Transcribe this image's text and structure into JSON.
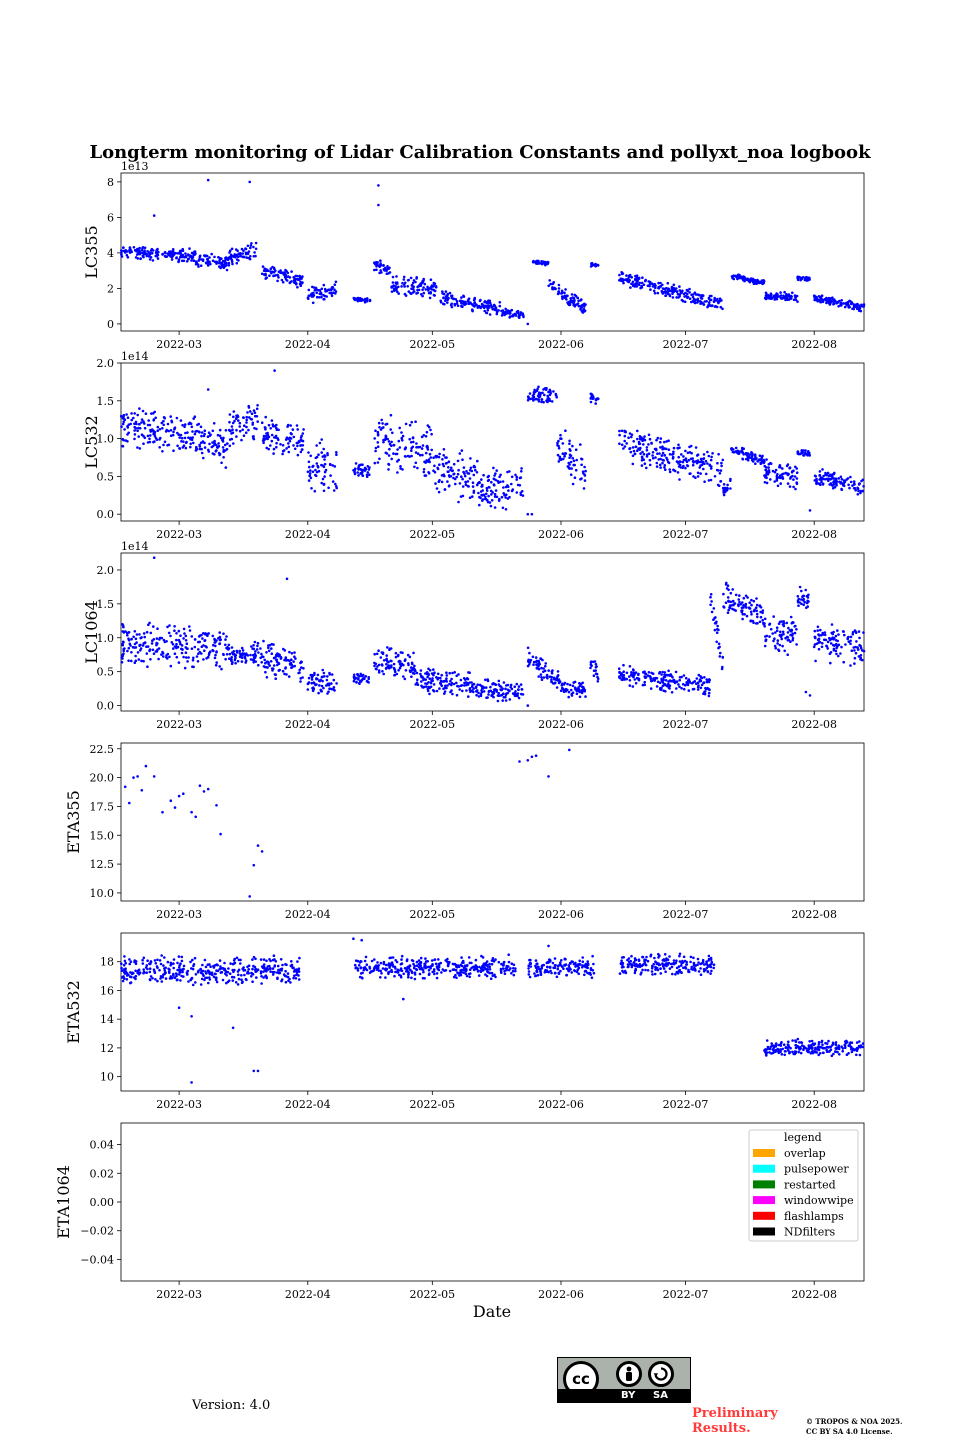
{
  "figure": {
    "title": "Longterm monitoring of Lidar Calibration Constants and pollyxt_noa logbook",
    "xlabel": "Date",
    "x_ticks": [
      "2022-03",
      "2022-04",
      "2022-05",
      "2022-06",
      "2022-07",
      "2022-08"
    ],
    "marker_color": "#0000ff"
  },
  "chart_data": [
    {
      "type": "scatter",
      "name": "lc355",
      "ylabel": "LC355",
      "offset_text": "1e13",
      "ylim": [
        -0.4,
        8.5
      ],
      "yticks": [
        0,
        2,
        4,
        6,
        8
      ],
      "ytick_labels": [
        "0",
        "2",
        "4",
        "6",
        "8"
      ],
      "segments": [
        {
          "start": "2022-02-15",
          "end": "2022-03-05",
          "y0": 4.1,
          "y1": 3.8,
          "spread": 0.5
        },
        {
          "start": "2022-03-05",
          "end": "2022-03-13",
          "y0": 3.6,
          "y1": 3.4,
          "spread": 0.5
        },
        {
          "start": "2022-03-13",
          "end": "2022-03-20",
          "y0": 3.8,
          "y1": 4.2,
          "spread": 0.6
        },
        {
          "start": "2022-03-21",
          "end": "2022-03-31",
          "y0": 3.0,
          "y1": 2.4,
          "spread": 0.5
        },
        {
          "start": "2022-04-01",
          "end": "2022-04-08",
          "y0": 1.6,
          "y1": 2.0,
          "spread": 0.6
        },
        {
          "start": "2022-04-12",
          "end": "2022-04-16",
          "y0": 1.4,
          "y1": 1.3,
          "spread": 0.15
        },
        {
          "start": "2022-04-17",
          "end": "2022-04-21",
          "y0": 3.4,
          "y1": 3.0,
          "spread": 0.5
        },
        {
          "start": "2022-04-21",
          "end": "2022-05-02",
          "y0": 2.2,
          "y1": 2.0,
          "spread": 0.7
        },
        {
          "start": "2022-05-03",
          "end": "2022-05-18",
          "y0": 1.5,
          "y1": 0.8,
          "spread": 0.5
        },
        {
          "start": "2022-05-18",
          "end": "2022-05-23",
          "y0": 0.6,
          "y1": 0.5,
          "spread": 0.3
        },
        {
          "start": "2022-05-25",
          "end": "2022-05-29",
          "y0": 3.5,
          "y1": 3.4,
          "spread": 0.15
        },
        {
          "start": "2022-05-29",
          "end": "2022-06-07",
          "y0": 2.2,
          "y1": 0.8,
          "spread": 0.5
        },
        {
          "start": "2022-06-08",
          "end": "2022-06-10",
          "y0": 3.3,
          "y1": 3.3,
          "spread": 0.15
        },
        {
          "start": "2022-06-15",
          "end": "2022-07-10",
          "y0": 2.6,
          "y1": 1.1,
          "spread": 0.5
        },
        {
          "start": "2022-07-12",
          "end": "2022-07-20",
          "y0": 2.7,
          "y1": 2.3,
          "spread": 0.2
        },
        {
          "start": "2022-07-20",
          "end": "2022-07-28",
          "y0": 1.6,
          "y1": 1.5,
          "spread": 0.3
        },
        {
          "start": "2022-07-28",
          "end": "2022-07-31",
          "y0": 2.6,
          "y1": 2.5,
          "spread": 0.15
        },
        {
          "start": "2022-08-01",
          "end": "2022-08-13",
          "y0": 1.5,
          "y1": 0.9,
          "spread": 0.3
        }
      ],
      "outliers": [
        [
          "2022-03-08",
          8.1
        ],
        [
          "2022-03-18",
          8.0
        ],
        [
          "2022-04-18",
          7.8
        ],
        [
          "2022-04-18",
          6.7
        ],
        [
          "2022-02-23",
          6.1
        ],
        [
          "2022-05-24",
          0.0
        ]
      ]
    },
    {
      "type": "scatter",
      "name": "lc532",
      "ylabel": "LC532",
      "offset_text": "1e14",
      "ylim": [
        -0.09,
        2.0
      ],
      "yticks": [
        0,
        0.5,
        1.0,
        1.5,
        2.0
      ],
      "ytick_labels": [
        "0.0",
        "0.5",
        "1.0",
        "1.5",
        "2.0"
      ],
      "segments": [
        {
          "start": "2022-02-15",
          "end": "2022-03-05",
          "y0": 1.15,
          "y1": 1.05,
          "spread": 0.35
        },
        {
          "start": "2022-03-05",
          "end": "2022-03-13",
          "y0": 0.95,
          "y1": 0.9,
          "spread": 0.35
        },
        {
          "start": "2022-03-13",
          "end": "2022-03-20",
          "y0": 1.15,
          "y1": 1.25,
          "spread": 0.35
        },
        {
          "start": "2022-03-21",
          "end": "2022-03-31",
          "y0": 1.05,
          "y1": 0.95,
          "spread": 0.3
        },
        {
          "start": "2022-04-01",
          "end": "2022-04-08",
          "y0": 0.6,
          "y1": 0.65,
          "spread": 0.5
        },
        {
          "start": "2022-04-12",
          "end": "2022-04-16",
          "y0": 0.6,
          "y1": 0.55,
          "spread": 0.1
        },
        {
          "start": "2022-04-17",
          "end": "2022-05-01",
          "y0": 0.95,
          "y1": 0.85,
          "spread": 0.45
        },
        {
          "start": "2022-05-01",
          "end": "2022-05-12",
          "y0": 0.6,
          "y1": 0.45,
          "spread": 0.4
        },
        {
          "start": "2022-05-12",
          "end": "2022-05-23",
          "y0": 0.35,
          "y1": 0.35,
          "spread": 0.35
        },
        {
          "start": "2022-05-24",
          "end": "2022-05-31",
          "y0": 1.58,
          "y1": 1.58,
          "spread": 0.15
        },
        {
          "start": "2022-05-31",
          "end": "2022-06-07",
          "y0": 0.9,
          "y1": 0.5,
          "spread": 0.4
        },
        {
          "start": "2022-06-08",
          "end": "2022-06-10",
          "y0": 1.55,
          "y1": 1.55,
          "spread": 0.1
        },
        {
          "start": "2022-06-15",
          "end": "2022-07-10",
          "y0": 0.95,
          "y1": 0.55,
          "spread": 0.3
        },
        {
          "start": "2022-07-10",
          "end": "2022-07-12",
          "y0": 0.3,
          "y1": 0.4,
          "spread": 0.1
        },
        {
          "start": "2022-07-12",
          "end": "2022-07-20",
          "y0": 0.85,
          "y1": 0.7,
          "spread": 0.1
        },
        {
          "start": "2022-07-20",
          "end": "2022-07-28",
          "y0": 0.55,
          "y1": 0.5,
          "spread": 0.2
        },
        {
          "start": "2022-07-28",
          "end": "2022-07-31",
          "y0": 0.82,
          "y1": 0.8,
          "spread": 0.05
        },
        {
          "start": "2022-08-01",
          "end": "2022-08-13",
          "y0": 0.5,
          "y1": 0.35,
          "spread": 0.15
        }
      ],
      "outliers": [
        [
          "2022-03-24",
          1.9
        ],
        [
          "2022-03-08",
          1.65
        ],
        [
          "2022-05-24",
          0.0
        ],
        [
          "2022-05-25",
          0.0
        ],
        [
          "2022-07-31",
          0.05
        ]
      ]
    },
    {
      "type": "scatter",
      "name": "lc1064",
      "ylabel": "LC1064",
      "offset_text": "1e14",
      "ylim": [
        -0.08,
        2.25
      ],
      "yticks": [
        0,
        0.5,
        1.0,
        1.5,
        2.0
      ],
      "ytick_labels": [
        "0.0",
        "0.5",
        "1.0",
        "1.5",
        "2.0"
      ],
      "segments": [
        {
          "start": "2022-02-15",
          "end": "2022-03-13",
          "y0": 0.9,
          "y1": 0.85,
          "spread": 0.4
        },
        {
          "start": "2022-03-13",
          "end": "2022-03-20",
          "y0": 0.7,
          "y1": 0.8,
          "spread": 0.2
        },
        {
          "start": "2022-03-20",
          "end": "2022-03-31",
          "y0": 0.7,
          "y1": 0.55,
          "spread": 0.35
        },
        {
          "start": "2022-04-01",
          "end": "2022-04-08",
          "y0": 0.35,
          "y1": 0.35,
          "spread": 0.25
        },
        {
          "start": "2022-04-12",
          "end": "2022-04-16",
          "y0": 0.4,
          "y1": 0.4,
          "spread": 0.1
        },
        {
          "start": "2022-04-17",
          "end": "2022-04-27",
          "y0": 0.65,
          "y1": 0.55,
          "spread": 0.3
        },
        {
          "start": "2022-04-27",
          "end": "2022-05-10",
          "y0": 0.4,
          "y1": 0.3,
          "spread": 0.25
        },
        {
          "start": "2022-05-10",
          "end": "2022-05-23",
          "y0": 0.25,
          "y1": 0.2,
          "spread": 0.2
        },
        {
          "start": "2022-05-24",
          "end": "2022-06-01",
          "y0": 0.7,
          "y1": 0.35,
          "spread": 0.2
        },
        {
          "start": "2022-06-01",
          "end": "2022-06-07",
          "y0": 0.25,
          "y1": 0.25,
          "spread": 0.15
        },
        {
          "start": "2022-06-08",
          "end": "2022-06-10",
          "y0": 0.55,
          "y1": 0.5,
          "spread": 0.2
        },
        {
          "start": "2022-06-15",
          "end": "2022-07-07",
          "y0": 0.45,
          "y1": 0.3,
          "spread": 0.2
        },
        {
          "start": "2022-07-07",
          "end": "2022-07-10",
          "y0": 1.65,
          "y1": 0.55,
          "spread": 0.2
        },
        {
          "start": "2022-07-10",
          "end": "2022-07-20",
          "y0": 1.6,
          "y1": 1.3,
          "spread": 0.3
        },
        {
          "start": "2022-07-20",
          "end": "2022-07-28",
          "y0": 1.05,
          "y1": 1.05,
          "spread": 0.35
        },
        {
          "start": "2022-07-28",
          "end": "2022-07-31",
          "y0": 1.6,
          "y1": 1.55,
          "spread": 0.2
        },
        {
          "start": "2022-08-01",
          "end": "2022-08-13",
          "y0": 0.95,
          "y1": 0.85,
          "spread": 0.35
        }
      ],
      "outliers": [
        [
          "2022-02-23",
          2.18
        ],
        [
          "2022-03-27",
          1.87
        ],
        [
          "2022-07-31",
          0.15
        ],
        [
          "2022-07-30",
          0.2
        ],
        [
          "2022-05-24",
          0.0
        ]
      ]
    },
    {
      "type": "scatter",
      "name": "eta355",
      "ylabel": "ETA355",
      "offset_text": "",
      "ylim": [
        9.3,
        23.0
      ],
      "yticks": [
        10,
        12.5,
        15,
        17.5,
        20,
        22.5
      ],
      "ytick_labels": [
        "10.0",
        "12.5",
        "15.0",
        "17.5",
        "20.0",
        "22.5"
      ],
      "segments": [],
      "outliers": [
        [
          "2022-02-16",
          19.2
        ],
        [
          "2022-02-17",
          17.8
        ],
        [
          "2022-02-18",
          20.0
        ],
        [
          "2022-02-19",
          20.1
        ],
        [
          "2022-02-20",
          18.9
        ],
        [
          "2022-02-21",
          21.0
        ],
        [
          "2022-02-23",
          20.1
        ],
        [
          "2022-02-25",
          17.0
        ],
        [
          "2022-02-27",
          18.0
        ],
        [
          "2022-02-28",
          17.4
        ],
        [
          "2022-03-01",
          18.4
        ],
        [
          "2022-03-02",
          18.6
        ],
        [
          "2022-03-04",
          17.0
        ],
        [
          "2022-03-05",
          16.6
        ],
        [
          "2022-03-06",
          19.3
        ],
        [
          "2022-03-07",
          18.8
        ],
        [
          "2022-03-08",
          19.0
        ],
        [
          "2022-03-10",
          17.6
        ],
        [
          "2022-03-11",
          15.1
        ],
        [
          "2022-03-19",
          12.4
        ],
        [
          "2022-03-20",
          14.1
        ],
        [
          "2022-03-21",
          13.6
        ],
        [
          "2022-03-18",
          9.7
        ],
        [
          "2022-05-22",
          21.4
        ],
        [
          "2022-05-24",
          21.5
        ],
        [
          "2022-05-25",
          21.8
        ],
        [
          "2022-05-26",
          21.9
        ],
        [
          "2022-05-29",
          20.1
        ],
        [
          "2022-06-03",
          22.4
        ]
      ]
    },
    {
      "type": "scatter",
      "name": "eta532",
      "ylabel": "ETA532",
      "offset_text": "",
      "ylim": [
        9.0,
        20.0
      ],
      "yticks": [
        10,
        12,
        14,
        16,
        18
      ],
      "ytick_labels": [
        "10",
        "12",
        "14",
        "16",
        "18"
      ],
      "segments": [
        {
          "start": "2022-02-15",
          "end": "2022-03-30",
          "y0": 17.4,
          "y1": 17.4,
          "spread": 1.2
        },
        {
          "start": "2022-04-12",
          "end": "2022-05-21",
          "y0": 17.6,
          "y1": 17.6,
          "spread": 1.0
        },
        {
          "start": "2022-05-24",
          "end": "2022-06-09",
          "y0": 17.6,
          "y1": 17.6,
          "spread": 0.9
        },
        {
          "start": "2022-06-15",
          "end": "2022-07-08",
          "y0": 17.8,
          "y1": 17.8,
          "spread": 0.9
        },
        {
          "start": "2022-07-20",
          "end": "2022-08-13",
          "y0": 12.0,
          "y1": 12.0,
          "spread": 0.7
        }
      ],
      "outliers": [
        [
          "2022-03-04",
          9.6
        ],
        [
          "2022-03-19",
          10.4
        ],
        [
          "2022-03-20",
          10.4
        ],
        [
          "2022-03-01",
          14.8
        ],
        [
          "2022-03-04",
          14.2
        ],
        [
          "2022-03-14",
          13.4
        ],
        [
          "2022-04-12",
          19.6
        ],
        [
          "2022-04-14",
          19.5
        ],
        [
          "2022-04-24",
          15.4
        ],
        [
          "2022-05-29",
          19.1
        ]
      ]
    },
    {
      "type": "scatter",
      "name": "eta1064",
      "ylabel": "ETA1064",
      "offset_text": "",
      "ylim": [
        -0.055,
        0.055
      ],
      "yticks": [
        -0.04,
        -0.02,
        0.0,
        0.02,
        0.04
      ],
      "ytick_labels": [
        "−0.04",
        "−0.02",
        "0.00",
        "0.02",
        "0.04"
      ],
      "segments": [],
      "outliers": []
    }
  ],
  "legend": {
    "title": "legend",
    "items": [
      {
        "label": "overlap",
        "color": "#ffa500"
      },
      {
        "label": "pulsepower",
        "color": "#00ffff"
      },
      {
        "label": "restarted",
        "color": "#008000"
      },
      {
        "label": "windowwipe",
        "color": "#ff00ff"
      },
      {
        "label": "flashlamps",
        "color": "#ff0000"
      },
      {
        "label": "NDfilters",
        "color": "#000000"
      }
    ]
  },
  "footer": {
    "version": "Version: 4.0",
    "license_by": "BY",
    "license_sa": "SA",
    "license_cc": "cc",
    "preliminary_line1": "Preliminary",
    "preliminary_line2": "Results.",
    "copyright_line1": "© TROPOS & NOA 2025.",
    "copyright_line2": "CC BY SA 4.0 License."
  }
}
